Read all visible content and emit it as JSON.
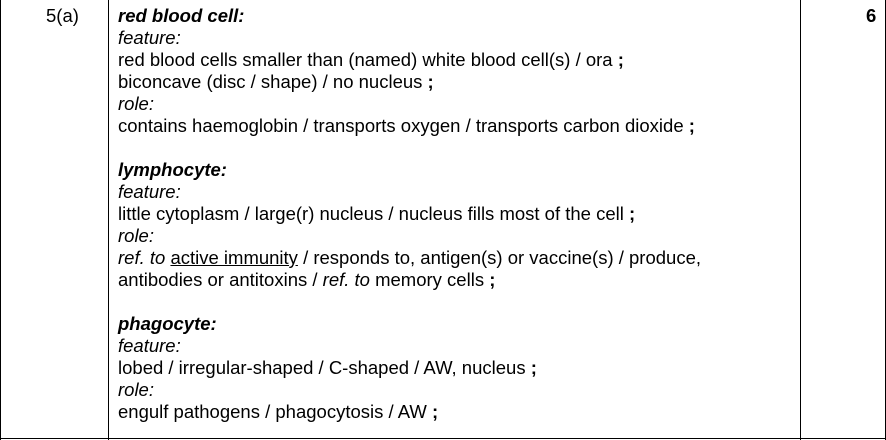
{
  "question_number": "5(a)",
  "marks": "6",
  "sections": [
    {
      "heading": "red blood cell:",
      "feature_label": "feature:",
      "feature_lines": [
        "red blood cells smaller than (named) white blood cell(s) / ora",
        "biconcave (disc / shape) / no nucleus"
      ],
      "role_label": "role:",
      "role_lines": [
        "contains haemoglobin / transports oxygen / transports carbon dioxide"
      ]
    },
    {
      "heading": "lymphocyte:",
      "feature_label": "feature:",
      "feature_lines": [
        "little cytoplasm / large(r) nucleus / nucleus fills most of the cell"
      ],
      "role_label": "role:",
      "role_line1": {
        "ref": "ref. to",
        "underlined": "active immunity",
        "rest": "/ responds to, antigen(s) or  vaccine(s) / produce,"
      },
      "role_line2": {
        "text": "antibodies or antitoxins / ",
        "ref": "ref. to",
        "rest": "memory cells"
      }
    },
    {
      "heading": "phagocyte:",
      "feature_label": "feature:",
      "feature_lines": [
        "lobed / irregular-shaped / C-shaped / AW, nucleus"
      ],
      "role_label": "role:",
      "role_lines": [
        "engulf pathogens / phagocytosis / AW"
      ]
    }
  ],
  "mark_symbol": ";"
}
